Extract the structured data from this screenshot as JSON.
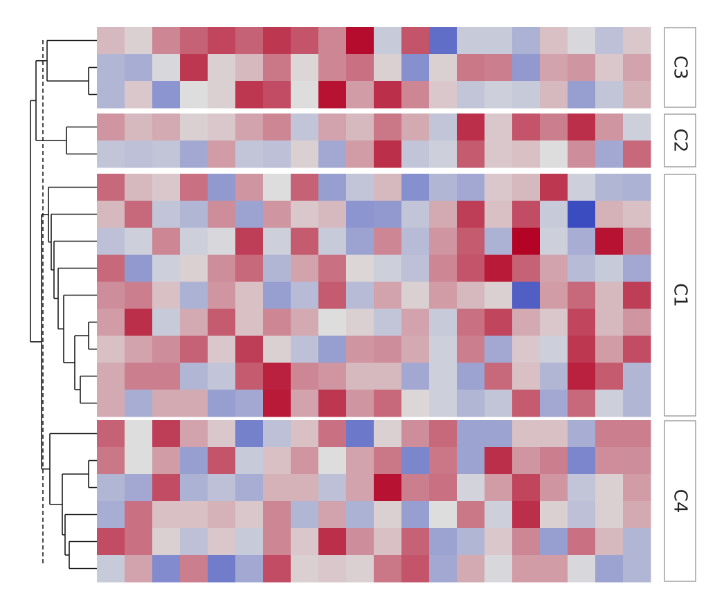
{
  "chart_data": {
    "type": "heatmap",
    "title": "",
    "xlabel": "",
    "ylabel": "",
    "n_columns": 20,
    "color_scale": {
      "low": "#3b4cc0",
      "mid": "#dddddd",
      "high": "#b40426",
      "vmin": -3,
      "vmax": 3
    },
    "row_groups": [
      {
        "label": "C3",
        "rows": [
          [
            0.5,
            0.2,
            1.2,
            1.7,
            2.1,
            1.7,
            2.3,
            1.9,
            1.2,
            2.9,
            -0.4,
            1.9,
            -2.3,
            -0.4,
            -0.4,
            -0.9,
            0.4,
            -0.1,
            -0.6,
            0.3
          ],
          [
            -0.8,
            -1.0,
            -0.1,
            2.3,
            0.2,
            0.5,
            1.4,
            0.1,
            1.2,
            1.5,
            0.2,
            -1.6,
            0.2,
            1.4,
            1.3,
            -1.4,
            0.8,
            1.0,
            0.3,
            0.8
          ],
          [
            -0.8,
            0.3,
            -1.5,
            0.0,
            0.2,
            2.3,
            2.0,
            0.0,
            2.8,
            0.9,
            2.4,
            1.2,
            0.3,
            -0.5,
            -0.3,
            -0.4,
            0.5,
            -1.3,
            -0.5,
            0.6
          ]
        ]
      },
      {
        "label": "C2",
        "rows": [
          [
            1.0,
            0.5,
            0.7,
            0.2,
            0.3,
            0.8,
            1.2,
            -0.5,
            0.8,
            0.5,
            1.4,
            0.7,
            -0.5,
            2.4,
            0.3,
            1.9,
            1.3,
            2.4,
            1.0,
            -0.3
          ],
          [
            -0.5,
            -0.6,
            -0.5,
            -1.1,
            0.9,
            -0.5,
            -0.6,
            0.2,
            -1.1,
            0.9,
            2.4,
            -0.5,
            -0.3,
            1.8,
            0.3,
            0.4,
            0.0,
            1.1,
            -1.1,
            1.6
          ]
        ]
      },
      {
        "label": "C1",
        "rows": [
          [
            1.6,
            0.5,
            0.3,
            1.5,
            -1.4,
            1.0,
            0.0,
            1.7,
            -1.3,
            -0.5,
            0.5,
            -1.6,
            -0.8,
            -1.1,
            0.3,
            0.5,
            2.3,
            -0.3,
            -0.8,
            -0.9
          ],
          [
            0.5,
            1.6,
            -0.5,
            -0.8,
            1.1,
            -1.2,
            1.0,
            0.3,
            0.5,
            -1.5,
            -1.4,
            -0.5,
            0.7,
            2.2,
            0.4,
            2.0,
            -0.4,
            -3.0,
            0.6,
            0.4
          ],
          [
            -0.6,
            -0.3,
            1.2,
            -0.3,
            -0.1,
            2.2,
            -0.3,
            1.8,
            -0.4,
            -1.2,
            1.2,
            -0.7,
            1.0,
            1.8,
            -0.9,
            3.0,
            -0.3,
            -1.0,
            2.8,
            1.2
          ],
          [
            1.6,
            -1.4,
            -0.3,
            0.2,
            1.1,
            1.6,
            -0.8,
            0.8,
            1.5,
            0.1,
            -0.3,
            -0.6,
            1.2,
            1.9,
            2.7,
            1.7,
            0.8,
            -0.7,
            -0.4,
            -1.1
          ],
          [
            1.1,
            1.3,
            0.4,
            -0.9,
            1.0,
            0.4,
            -1.3,
            -0.7,
            1.8,
            -0.7,
            0.8,
            0.2,
            0.9,
            0.5,
            0.2,
            -2.6,
            0.9,
            1.6,
            0.5,
            2.2
          ],
          [
            0.9,
            2.4,
            -0.4,
            0.7,
            1.8,
            0.4,
            1.2,
            0.7,
            0.0,
            0.2,
            -0.5,
            0.8,
            -0.4,
            1.5,
            2.1,
            0.7,
            0.3,
            2.1,
            0.5,
            1.0
          ],
          [
            0.4,
            0.8,
            1.1,
            1.7,
            0.3,
            2.2,
            0.2,
            -0.6,
            -1.3,
            1.0,
            1.1,
            0.7,
            -0.3,
            1.3,
            -1.1,
            0.3,
            -0.3,
            2.3,
            0.9,
            2.0
          ],
          [
            0.7,
            1.3,
            1.3,
            -0.8,
            -0.5,
            1.8,
            2.6,
            1.2,
            1.0,
            0.5,
            0.5,
            -1.1,
            -0.3,
            -1.2,
            1.6,
            0.4,
            -0.8,
            2.6,
            1.8,
            -0.8
          ],
          [
            0.7,
            -1.0,
            0.7,
            0.7,
            -1.3,
            -1.1,
            2.7,
            0.8,
            2.3,
            1.0,
            1.6,
            0.1,
            -0.3,
            -0.8,
            -0.5,
            1.8,
            -1.1,
            1.6,
            -0.3,
            -0.8
          ]
        ]
      },
      {
        "label": "C4",
        "rows": [
          [
            1.7,
            0.0,
            2.2,
            0.8,
            0.3,
            -1.9,
            -0.6,
            0.4,
            1.5,
            -2.1,
            0.2,
            1.1,
            1.6,
            -1.2,
            -1.2,
            0.4,
            0.4,
            -1.0,
            1.3,
            1.3
          ],
          [
            1.4,
            0.0,
            0.9,
            -1.3,
            1.9,
            -0.4,
            0.4,
            1.0,
            0.0,
            0.8,
            1.4,
            -1.8,
            1.4,
            -1.2,
            2.4,
            1.0,
            1.3,
            -1.8,
            1.1,
            1.1
          ],
          [
            -0.8,
            -1.1,
            2.0,
            -0.9,
            -0.6,
            -1.0,
            0.6,
            0.6,
            -0.6,
            0.8,
            2.8,
            1.3,
            1.5,
            -0.2,
            0.9,
            2.1,
            1.0,
            -0.5,
            0.2,
            0.9
          ],
          [
            -1.0,
            1.5,
            0.4,
            0.4,
            0.6,
            0.3,
            1.2,
            -0.8,
            0.8,
            -0.9,
            0.2,
            -1.3,
            0.0,
            1.4,
            -0.3,
            2.4,
            0.2,
            -0.6,
            0.2,
            0.7
          ],
          [
            2.0,
            1.5,
            0.2,
            -0.6,
            0.3,
            -0.4,
            1.2,
            0.3,
            2.4,
            1.1,
            0.4,
            1.7,
            -1.2,
            -0.8,
            0.3,
            1.2,
            -1.3,
            1.5,
            0.5,
            -0.8
          ],
          [
            -0.4,
            0.8,
            -1.7,
            1.3,
            -2.0,
            -1.1,
            2.0,
            0.2,
            0.3,
            0.2,
            1.4,
            1.9,
            -1.1,
            0.7,
            -0.1,
            0.9,
            0.9,
            -0.1,
            -1.2,
            -0.8
          ]
        ]
      }
    ]
  }
}
